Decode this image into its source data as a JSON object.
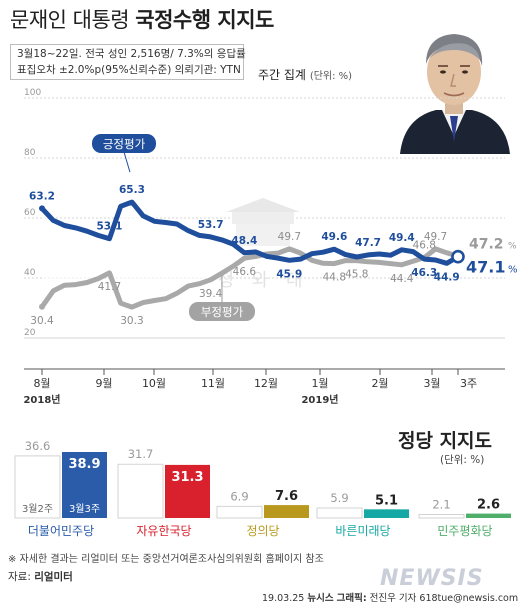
{
  "header": {
    "title_a": "문재인 대통령",
    "title_b": "국정수행 지지도",
    "sub_line1": "3월18~22일. 전국 성인 2,516명/ 7.3%의 응답률",
    "sub_line2": "표집오차 ±2.0%p(95%신뢰수준) 의뢰기관: YTN",
    "weekly": "주간 집계",
    "weekly_unit": "(단위: %)"
  },
  "watermark": "청 와 대",
  "colors": {
    "approve": "#1f4e9c",
    "disapprove": "#a9a9a9",
    "democratic": "#2a5caa",
    "liberty_korea": "#d9212e",
    "justice": "#b8991e",
    "bareun_mirae": "#16a8a5",
    "peace": "#4fae6a"
  },
  "chart_data": [
    {
      "type": "line",
      "ylim": [
        20,
        100
      ],
      "yticks": [
        20,
        40,
        60,
        80,
        100
      ],
      "x_month_labels": [
        "8월",
        "9월",
        "10월",
        "11월",
        "12월",
        "1월",
        "2월",
        "3월",
        "3주"
      ],
      "x_year_labels": [
        "2018년",
        "2019년"
      ],
      "series": [
        {
          "name": "긍정평가",
          "values": [
            63.2,
            59.2,
            57.5,
            56.7,
            55.6,
            54.2,
            53.1,
            63.9,
            65.3,
            60.7,
            58.9,
            58.5,
            58.0,
            55.8,
            54.2,
            53.7,
            52.7,
            51.3,
            48.4,
            48.7,
            47.2,
            46.6,
            45.9,
            46.3,
            48.1,
            48.6,
            49.6,
            47.8,
            47.0,
            47.7,
            48.0,
            47.6,
            49.4,
            48.8,
            46.3,
            46.0,
            44.9,
            47.1
          ],
          "end_label": "47.1",
          "labels": [
            {
              "i": 0,
              "v": "63.2"
            },
            {
              "i": 6,
              "v": "53.1"
            },
            {
              "i": 8,
              "v": "65.3"
            },
            {
              "i": 15,
              "v": "53.7"
            },
            {
              "i": 18,
              "v": "48.4"
            },
            {
              "i": 22,
              "v": "45.9"
            },
            {
              "i": 26,
              "v": "49.6"
            },
            {
              "i": 29,
              "v": "47.7"
            },
            {
              "i": 32,
              "v": "49.4"
            },
            {
              "i": 34,
              "v": "46.3"
            },
            {
              "i": 36,
              "v": "44.9"
            }
          ]
        },
        {
          "name": "부정평가",
          "values": [
            30.4,
            35.7,
            37.6,
            37.8,
            38.5,
            39.8,
            41.7,
            31.6,
            30.3,
            31.8,
            32.5,
            33.1,
            34.9,
            37.3,
            38.1,
            39.4,
            41.6,
            43.9,
            46.6,
            47.2,
            48.0,
            48.3,
            49.7,
            48.3,
            45.9,
            44.9,
            44.8,
            45.8,
            45.8,
            45.4,
            45.2,
            44.8,
            44.4,
            45.6,
            46.8,
            49.7,
            48.4,
            47.2
          ],
          "end_label": "47.2",
          "labels": [
            {
              "i": 0,
              "v": "30.4"
            },
            {
              "i": 6,
              "v": "41.7"
            },
            {
              "i": 8,
              "v": "30.3"
            },
            {
              "i": 15,
              "v": "39.4"
            },
            {
              "i": 18,
              "v": "46.6"
            },
            {
              "i": 22,
              "v": "49.7"
            },
            {
              "i": 26,
              "v": "44.8"
            },
            {
              "i": 28,
              "v": "45.8"
            },
            {
              "i": 32,
              "v": "44.4"
            },
            {
              "i": 34,
              "v": "46.8"
            },
            {
              "i": 35,
              "v": "49.7"
            }
          ]
        }
      ]
    },
    {
      "type": "bar",
      "title": "정당 지지도",
      "unit": "(단위: %)",
      "ylim": [
        0,
        45
      ],
      "categories": [
        "더불어민주당",
        "자유한국당",
        "정의당",
        "바른미래당",
        "민주평화당"
      ],
      "series": [
        {
          "name": "3월2주",
          "values": [
            36.6,
            31.7,
            6.9,
            5.9,
            2.1
          ]
        },
        {
          "name": "3월3주",
          "values": [
            38.9,
            31.3,
            7.6,
            5.1,
            2.6
          ]
        }
      ]
    }
  ],
  "footer": {
    "note": "※ 자세한 결과는 리얼미터 또는 중앙선거여론조사심의위원회 홈페이지 참조",
    "source_label": "자료:",
    "source_value": "리얼미터",
    "date": "19.03.25",
    "agency": "뉴시스",
    "graphic_label": "그래픽:",
    "credit": "전진우 기자 618tue@newsis.com",
    "logo": "NEWSIS"
  }
}
